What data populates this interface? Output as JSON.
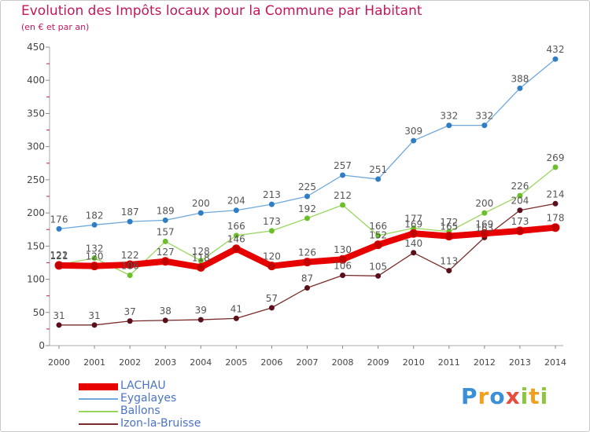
{
  "title": "Evolution des Impôts locaux pour la Commune par Habitant",
  "subtitle": "(en € et par an)",
  "logo": {
    "letters": [
      "P",
      "r",
      "o",
      "x",
      "i",
      "t",
      "i"
    ],
    "colors": [
      "#3a8fd6",
      "#f0a020",
      "#3a8fd6",
      "#e84c3c",
      "#8cc63f",
      "#f0a020",
      "#8cc63f"
    ]
  },
  "chart_data": {
    "type": "line",
    "x": [
      "2000",
      "2001",
      "2002",
      "2003",
      "2004",
      "2005",
      "2006",
      "2007",
      "2008",
      "2009",
      "2010",
      "2011",
      "2012",
      "2013",
      "2014"
    ],
    "ylim": [
      0,
      450
    ],
    "yticks": [
      0,
      50,
      100,
      150,
      200,
      250,
      300,
      350,
      400,
      450
    ],
    "grid": false,
    "legend_position": "bottom-left",
    "series": [
      {
        "name": "LACHAU",
        "color": "#e60000",
        "marker": "#c00000",
        "values": [
          121,
          120,
          122,
          127,
          118,
          146,
          120,
          126,
          130,
          152,
          169,
          165,
          169,
          173,
          178
        ],
        "labels": [
          "121",
          "120",
          "122",
          "127",
          "118",
          "146",
          "120",
          "126",
          "130",
          "152",
          "169",
          "165",
          "169",
          "173",
          "178"
        ]
      },
      {
        "name": "Eygalayes",
        "color": "#6fa8dc",
        "marker": "#2f7ec4",
        "values": [
          176,
          182,
          187,
          189,
          200,
          204,
          213,
          225,
          257,
          251,
          309,
          332,
          332,
          388,
          432
        ],
        "labels": [
          "176",
          "182",
          "187",
          "189",
          "200",
          "204",
          "213",
          "225",
          "257",
          "251",
          "309",
          "332",
          "332",
          "388",
          "432"
        ]
      },
      {
        "name": "Ballons",
        "color": "#9ad65f",
        "marker": "#6bbf2a",
        "values": [
          122,
          132,
          106,
          157,
          128,
          166,
          173,
          192,
          212,
          166,
          177,
          172,
          200,
          226,
          269
        ],
        "labels": [
          "122",
          "132",
          "106",
          "157",
          "128",
          "166",
          "173",
          "192",
          "212",
          "166",
          "177",
          "172",
          "200",
          "226",
          "269"
        ]
      },
      {
        "name": "Izon-la-Bruisse",
        "color": "#7a2a2a",
        "marker": "#5a0f1a",
        "values": [
          31,
          31,
          37,
          38,
          39,
          41,
          57,
          87,
          106,
          105,
          140,
          113,
          163,
          204,
          214
        ],
        "labels": [
          "31",
          "31",
          "37",
          "38",
          "39",
          "41",
          "57",
          "87",
          "106",
          "105",
          "140",
          "113",
          "163",
          "204",
          "214"
        ]
      }
    ]
  }
}
